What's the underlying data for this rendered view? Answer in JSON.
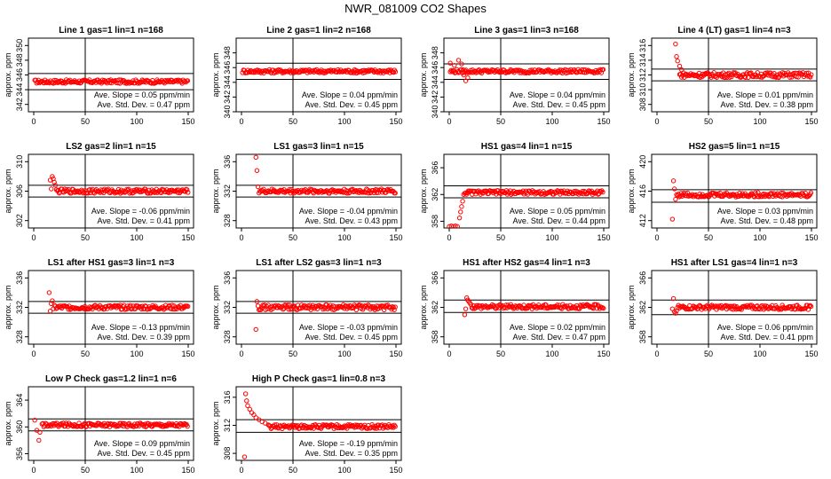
{
  "figure": {
    "title": "NWR_081009  CO2 Shapes"
  },
  "colors": {
    "points": "#ff0000",
    "axes": "#000000"
  },
  "chart_data": [
    {
      "type": "scatter",
      "title": "Line 1 gas=1 lin=1 n=168",
      "ylabel": "approx. ppm",
      "xlim": [
        0,
        150
      ],
      "ylim": [
        341,
        351
      ],
      "xticks": [
        0,
        50,
        100,
        150
      ],
      "yticks": [
        342,
        344,
        346,
        348,
        350
      ],
      "hlines": [
        346.2,
        344.0
      ],
      "vline": 50,
      "slope_label": "Ave. Slope = 0.05 ppm/min",
      "std_label": "Ave. Std. Dev. = 0.47 ppm",
      "series": [
        {
          "x_start": 1,
          "x_end": 150,
          "level": 345.1,
          "spread": 0.25
        }
      ]
    },
    {
      "type": "scatter",
      "title": "Line 2 gas=1 lin=2 n=168",
      "ylabel": "approx. ppm",
      "xlim": [
        0,
        150
      ],
      "ylim": [
        340,
        350
      ],
      "xticks": [
        0,
        50,
        100,
        150
      ],
      "yticks": [
        340,
        342,
        344,
        346,
        348
      ],
      "hlines": [
        346.6,
        344.4
      ],
      "vline": 50,
      "slope_label": "Ave. Slope = 0.04 ppm/min",
      "std_label": "Ave. Std. Dev. = 0.45 ppm",
      "series": [
        {
          "x_start": 1,
          "x_end": 150,
          "level": 345.5,
          "spread": 0.25
        }
      ]
    },
    {
      "type": "scatter",
      "title": "Line 3 gas=1 lin=3 n=168",
      "ylabel": "approx. ppm",
      "xlim": [
        0,
        150
      ],
      "ylim": [
        340,
        350
      ],
      "xticks": [
        0,
        50,
        100,
        150
      ],
      "yticks": [
        340,
        342,
        344,
        346,
        348
      ],
      "hlines": [
        346.5,
        344.4
      ],
      "vline": 50,
      "slope_label": "Ave. Slope = 0.04 ppm/min",
      "std_label": "Ave. Std. Dev. = 0.45 ppm",
      "series": [
        {
          "x_start": 1,
          "x_end": 150,
          "level": 345.5,
          "spread": 0.25,
          "early": [
            [
              1,
              346.6
            ],
            [
              5,
              346.3
            ],
            [
              9,
              347.0
            ],
            [
              12,
              346.5
            ],
            [
              14,
              345.0
            ],
            [
              16,
              344.2
            ],
            [
              18,
              344.6
            ]
          ]
        }
      ]
    },
    {
      "type": "scatter",
      "title": "Line 4 (LT) gas=1 lin=4 n=3",
      "ylabel": "approx. ppm",
      "xlim": [
        0,
        150
      ],
      "ylim": [
        307,
        317
      ],
      "xticks": [
        0,
        50,
        100,
        150
      ],
      "yticks": [
        308,
        310,
        312,
        314,
        316
      ],
      "hlines": [
        312.8,
        311.2
      ],
      "vline": 50,
      "slope_label": "Ave. Slope = 0.01 ppm/min",
      "std_label": "Ave. Std. Dev. = 0.38 ppm",
      "series": [
        {
          "x_start": 22,
          "x_end": 150,
          "level": 312.0,
          "spread": 0.35,
          "early": [
            [
              18,
              316.2
            ],
            [
              19,
              314.5
            ],
            [
              20,
              313.9
            ],
            [
              22,
              313.2
            ],
            [
              24,
              312.7
            ]
          ]
        }
      ]
    },
    {
      "type": "scatter",
      "title": "LS2 gas=2 lin=1 n=15",
      "ylabel": "approx. ppm",
      "xlim": [
        0,
        150
      ],
      "ylim": [
        301,
        311
      ],
      "xticks": [
        0,
        50,
        100,
        150
      ],
      "yticks": [
        302,
        306,
        310
      ],
      "hlines": [
        306.8,
        305.2
      ],
      "vline": 50,
      "slope_label": "Ave. Slope = -0.06 ppm/min",
      "std_label": "Ave. Std. Dev. = 0.41 ppm",
      "series": [
        {
          "x_start": 22,
          "x_end": 150,
          "level": 306.0,
          "spread": 0.3,
          "early": [
            [
              16,
              307.5
            ],
            [
              17,
              306.3
            ],
            [
              18,
              308.0
            ],
            [
              19,
              307.7
            ],
            [
              20,
              307.2
            ],
            [
              21,
              306.8
            ]
          ]
        }
      ]
    },
    {
      "type": "scatter",
      "title": "LS1 gas=3 lin=1 n=15",
      "ylabel": "approx. ppm",
      "xlim": [
        0,
        150
      ],
      "ylim": [
        327,
        337
      ],
      "xticks": [
        0,
        50,
        100,
        150
      ],
      "yticks": [
        328,
        332,
        336
      ],
      "hlines": [
        332.8,
        331.2
      ],
      "vline": 50,
      "slope_label": "Ave. Slope = -0.04 ppm/min",
      "std_label": "Ave. Std. Dev. = 0.43 ppm",
      "series": [
        {
          "x_start": 17,
          "x_end": 150,
          "level": 332.0,
          "spread": 0.3,
          "early": [
            [
              14,
              336.6
            ],
            [
              15,
              334.8
            ],
            [
              16,
              332.6
            ]
          ]
        }
      ]
    },
    {
      "type": "scatter",
      "title": "HS1 gas=4 lin=1 n=15",
      "ylabel": "approx. ppm",
      "xlim": [
        0,
        150
      ],
      "ylim": [
        357,
        368
      ],
      "xticks": [
        0,
        50,
        100,
        150
      ],
      "yticks": [
        358,
        362,
        366
      ],
      "hlines": [
        363.3,
        361.5
      ],
      "vline": 50,
      "slope_label": "Ave. Slope = 0.05 ppm/min",
      "std_label": "Ave. Std. Dev. = 0.44 ppm",
      "series": [
        {
          "x_start": 15,
          "x_end": 150,
          "level": 362.3,
          "spread": 0.3,
          "early": [
            [
              0,
              357.2
            ],
            [
              2,
              357.3
            ],
            [
              4,
              357.2
            ],
            [
              6,
              357.3
            ],
            [
              8,
              357.2
            ],
            [
              10,
              358.5
            ],
            [
              11,
              359.4
            ],
            [
              12,
              360.2
            ],
            [
              13,
              361.0
            ],
            [
              14,
              362.0
            ]
          ]
        }
      ]
    },
    {
      "type": "scatter",
      "title": "HS2 gas=5 lin=1 n=15",
      "ylabel": "approx. ppm",
      "xlim": [
        0,
        150
      ],
      "ylim": [
        411,
        421
      ],
      "xticks": [
        0,
        50,
        100,
        150
      ],
      "yticks": [
        412,
        416,
        420
      ],
      "hlines": [
        416.2,
        414.5
      ],
      "vline": 50,
      "slope_label": "Ave. Slope = 0.03 ppm/min",
      "std_label": "Ave. Std. Dev. = 0.48 ppm",
      "series": [
        {
          "x_start": 19,
          "x_end": 150,
          "level": 415.5,
          "spread": 0.3,
          "early": [
            [
              15,
              412.2
            ],
            [
              16,
              417.4
            ],
            [
              17,
              416.3
            ],
            [
              18,
              414.9
            ]
          ]
        }
      ]
    },
    {
      "type": "scatter",
      "title": "LS1 after HS1 gas=3 lin=1 n=3",
      "ylabel": "approx. ppm",
      "xlim": [
        0,
        150
      ],
      "ylim": [
        327,
        337
      ],
      "xticks": [
        0,
        50,
        100,
        150
      ],
      "yticks": [
        328,
        332,
        336
      ],
      "hlines": [
        332.8,
        331.2
      ],
      "vline": 50,
      "slope_label": "Ave. Slope = -0.13 ppm/min",
      "std_label": "Ave. Std. Dev. = 0.39 ppm",
      "series": [
        {
          "x_start": 21,
          "x_end": 150,
          "level": 332.0,
          "spread": 0.3,
          "early": [
            [
              15,
              334.0
            ],
            [
              16,
              331.5
            ],
            [
              17,
              332.5
            ],
            [
              18,
              332.9
            ],
            [
              19,
              331.8
            ],
            [
              20,
              332.3
            ]
          ]
        }
      ]
    },
    {
      "type": "scatter",
      "title": "LS1 after LS2 gas=3 lin=1 n=3",
      "ylabel": "approx. ppm",
      "xlim": [
        0,
        150
      ],
      "ylim": [
        327,
        337
      ],
      "xticks": [
        0,
        50,
        100,
        150
      ],
      "yticks": [
        328,
        332,
        336
      ],
      "hlines": [
        332.8,
        331.2
      ],
      "vline": 50,
      "slope_label": "Ave. Slope = -0.03 ppm/min",
      "std_label": "Ave. Std. Dev. = 0.45 ppm",
      "series": [
        {
          "x_start": 17,
          "x_end": 150,
          "level": 332.0,
          "spread": 0.35,
          "early": [
            [
              14,
              329.0
            ],
            [
              15,
              332.8
            ],
            [
              16,
              332.2
            ]
          ]
        }
      ]
    },
    {
      "type": "scatter",
      "title": "HS1 after HS2 gas=4 lin=1 n=3",
      "ylabel": "approx. ppm",
      "xlim": [
        0,
        150
      ],
      "ylim": [
        357,
        367
      ],
      "xticks": [
        0,
        50,
        100,
        150
      ],
      "yticks": [
        358,
        362,
        366
      ],
      "hlines": [
        363.0,
        361.3
      ],
      "vline": 50,
      "slope_label": "Ave. Slope = 0.02 ppm/min",
      "std_label": "Ave. Std. Dev. = 0.47 ppm",
      "series": [
        {
          "x_start": 22,
          "x_end": 150,
          "level": 362.1,
          "spread": 0.3,
          "early": [
            [
              15,
              361.0
            ],
            [
              16,
              361.8
            ],
            [
              17,
              363.3
            ],
            [
              18,
              363.0
            ],
            [
              19,
              362.8
            ],
            [
              20,
              362.6
            ],
            [
              21,
              362.4
            ]
          ]
        }
      ]
    },
    {
      "type": "scatter",
      "title": "HS1 after LS1 gas=4 lin=1 n=3",
      "ylabel": "approx. ppm",
      "xlim": [
        0,
        150
      ],
      "ylim": [
        357,
        367
      ],
      "xticks": [
        0,
        50,
        100,
        150
      ],
      "yticks": [
        358,
        362,
        366
      ],
      "hlines": [
        363.0,
        361.0
      ],
      "vline": 50,
      "slope_label": "Ave. Slope = 0.06 ppm/min",
      "std_label": "Ave. Std. Dev. = 0.41 ppm",
      "series": [
        {
          "x_start": 20,
          "x_end": 150,
          "level": 362.0,
          "spread": 0.3,
          "early": [
            [
              15,
              361.8
            ],
            [
              16,
              363.2
            ],
            [
              17,
              361.4
            ],
            [
              18,
              361.2
            ],
            [
              19,
              361.5
            ]
          ]
        }
      ]
    },
    {
      "type": "scatter",
      "title": "Low P Check gas=1.2 lin=1 n=6",
      "ylabel": "approx. ppm",
      "xlim": [
        0,
        150
      ],
      "ylim": [
        355,
        366
      ],
      "xticks": [
        0,
        50,
        100,
        150
      ],
      "yticks": [
        356,
        360,
        364
      ],
      "hlines": [
        361.2,
        359.4
      ],
      "vline": 50,
      "slope_label": "Ave. Slope = 0.09 ppm/min",
      "std_label": "Ave. Std. Dev. = 0.45 ppm",
      "series": [
        {
          "x_start": 8,
          "x_end": 150,
          "level": 360.3,
          "spread": 0.3,
          "early": [
            [
              1,
              361.0
            ],
            [
              3,
              359.5
            ],
            [
              5,
              358.0
            ],
            [
              6,
              359.2
            ]
          ]
        }
      ]
    },
    {
      "type": "scatter",
      "title": "High P Check gas=1 lin=0.8 n=3",
      "ylabel": "approx. ppm",
      "xlim": [
        0,
        150
      ],
      "ylim": [
        307,
        317.5
      ],
      "xticks": [
        0,
        50,
        100,
        150
      ],
      "yticks": [
        308,
        312,
        316
      ],
      "hlines": [
        312.8,
        311.0
      ],
      "vline": 50,
      "slope_label": "Ave. Slope = -0.19 ppm/min",
      "std_label": "Ave. Std. Dev. = 0.35 ppm",
      "series": [
        {
          "x_start": 26,
          "x_end": 150,
          "level": 311.8,
          "spread": 0.3,
          "early": [
            [
              3,
              307.5
            ],
            [
              4,
              316.5
            ],
            [
              5,
              315.5
            ],
            [
              6,
              314.8
            ],
            [
              8,
              314.3
            ],
            [
              10,
              313.8
            ],
            [
              12,
              313.5
            ],
            [
              14,
              313.1
            ],
            [
              17,
              312.8
            ],
            [
              20,
              312.5
            ],
            [
              23,
              312.3
            ]
          ]
        }
      ]
    }
  ]
}
